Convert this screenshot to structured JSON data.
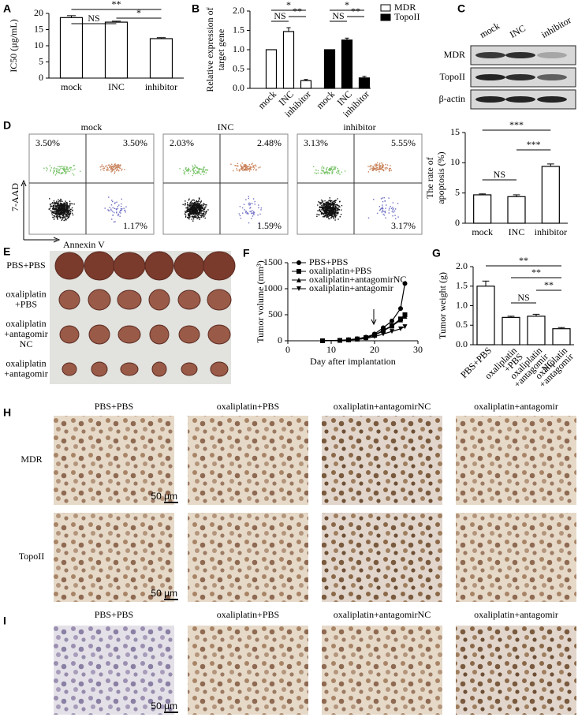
{
  "chart_data": [
    {
      "type": "bar",
      "ylabel": "IC50 (μg/mL)",
      "categories": [
        "mock",
        "INC",
        "inhibitor"
      ],
      "values": [
        18.7,
        17.3,
        12.2
      ],
      "errors": [
        0.6,
        0.3,
        0.3
      ],
      "color": "#ffffff",
      "ylim": [
        0,
        20
      ],
      "yticks": [
        0,
        5,
        10,
        15,
        20
      ],
      "annotations": [
        "**",
        "NS",
        "*"
      ]
    },
    {
      "type": "grouped_bar",
      "ylabel": [
        "Relative expression of",
        "target gene"
      ],
      "categories": [
        "mock",
        "INC",
        "inhibitor"
      ],
      "series": [
        {
          "name": "MDR",
          "color": "#ffffff",
          "values": [
            1.0,
            1.47,
            0.2
          ],
          "errors": [
            0,
            0.1,
            0.03
          ]
        },
        {
          "name": "TopoII",
          "color": "#000000",
          "values": [
            1.0,
            1.25,
            0.27
          ],
          "errors": [
            0,
            0.05,
            0.04
          ]
        }
      ],
      "ylim": [
        0,
        2
      ],
      "yticks": [
        {
          "value": 0,
          "label": "0.0"
        },
        {
          "value": 0.5,
          "label": "0.5"
        },
        {
          "value": 1,
          "label": "1.0"
        },
        {
          "value": 1.5,
          "label": "1.5"
        },
        {
          "value": 2,
          "label": "2.0"
        }
      ],
      "legend": "upper right",
      "annotations": [
        "*",
        "NS",
        "**",
        "*",
        "NS",
        "**"
      ]
    },
    {
      "type": "bar",
      "ylabel": [
        "The rate of",
        "apoptosis (%)"
      ],
      "categories": [
        "mock",
        "INC",
        "inhibitor"
      ],
      "values": [
        4.7,
        4.4,
        9.4
      ],
      "errors": [
        0.15,
        0.3,
        0.4
      ],
      "color": "#ffffff",
      "ylim": [
        0,
        15
      ],
      "yticks": [
        0,
        5,
        10,
        15
      ],
      "annotations": [
        "***",
        "NS",
        "***"
      ]
    },
    {
      "type": "line",
      "xlabel": "Day after implantation",
      "ylabel": "Tumor volume (mm³)",
      "x": [
        8,
        12,
        14,
        16,
        18,
        20,
        22,
        24,
        26,
        27
      ],
      "series": [
        {
          "name": "PBS+PBS",
          "color": "#000000",
          "marker": "circle",
          "values": [
            0,
            10,
            20,
            40,
            70,
            130,
            250,
            380,
            620,
            1100
          ]
        },
        {
          "name": "oxaliplatin+PBS",
          "color": "#000000",
          "marker": "square",
          "values": [
            0,
            8,
            18,
            35,
            60,
            110,
            200,
            290,
            420,
            500
          ]
        },
        {
          "name": "oxaliplatin+antagomirNC",
          "color": "#000000",
          "marker": "triangle",
          "values": [
            0,
            8,
            18,
            33,
            58,
            105,
            190,
            280,
            400,
            470
          ]
        },
        {
          "name": "oxaliplatin+antagomir",
          "color": "#000000",
          "marker": "triangle-down",
          "values": [
            0,
            6,
            14,
            25,
            45,
            80,
            130,
            180,
            230,
            270
          ]
        }
      ],
      "xlim": [
        0,
        30
      ],
      "xticks": [
        0,
        10,
        20,
        30
      ],
      "ylim": [
        0,
        1500
      ],
      "yticks": [
        0,
        500,
        1000,
        1500
      ],
      "legend": "upper left"
    },
    {
      "type": "bar",
      "ylabel": "Tumor weight (g)",
      "categories": [
        [
          "PBS+PBS"
        ],
        [
          "oxaliplatin",
          "+PBS"
        ],
        [
          "oxaliplatin",
          "+antagomir",
          "NC"
        ],
        [
          "oxaliplatin",
          "+antagomir"
        ]
      ],
      "values": [
        1.5,
        0.7,
        0.73,
        0.41
      ],
      "errors": [
        0.13,
        0.03,
        0.05,
        0.03
      ],
      "color": "#ffffff",
      "ylim": [
        0,
        2
      ],
      "yticks": [
        {
          "value": 0,
          "label": "0.0"
        },
        {
          "value": 0.5,
          "label": "0.5"
        },
        {
          "value": 1,
          "label": "1.0"
        },
        {
          "value": 1.5,
          "label": "1.5"
        },
        {
          "value": 2,
          "label": "2.0"
        }
      ],
      "annotations": [
        "**",
        "**",
        "NS",
        "**"
      ]
    }
  ],
  "panels": {
    "letters": [
      "A",
      "B",
      "C",
      "D",
      "E",
      "F",
      "G",
      "H",
      "I"
    ],
    "C": {
      "columns": [
        "mock",
        "INC",
        "inhibitor"
      ],
      "rows": [
        "MDR",
        "TopoII",
        "β-actin"
      ]
    },
    "D": {
      "titles": [
        "mock",
        "INC",
        "inhibitor"
      ],
      "quadrants": [
        [
          "3.50%",
          "3.50%",
          "1.17%"
        ],
        [
          "2.03%",
          "2.48%",
          "1.59%"
        ],
        [
          "3.13%",
          "5.55%",
          "3.17%"
        ]
      ],
      "ylabel": "7-AAD",
      "xlabel": "Annexin V"
    },
    "E": {
      "rows": [
        [
          "PBS+PBS"
        ],
        [
          "oxaliplatin",
          "+PBS"
        ],
        [
          "oxaliplatin",
          "+antagomir",
          "NC"
        ],
        [
          "oxaliplatin",
          "+antagomir"
        ]
      ]
    },
    "H": {
      "columns": [
        "PBS+PBS",
        "oxaliplatin+PBS",
        "oxaliplatin+antagomirNC",
        "oxaliplatin+antagomir"
      ],
      "rows": [
        "MDR",
        "TopoII"
      ],
      "scale": "50 μm"
    },
    "I": {
      "columns": [
        "PBS+PBS",
        "oxaliplatin+PBS",
        "oxaliplatin+antagomirNC",
        "oxaliplatin+antagomir"
      ],
      "scale": "50 μm"
    }
  }
}
